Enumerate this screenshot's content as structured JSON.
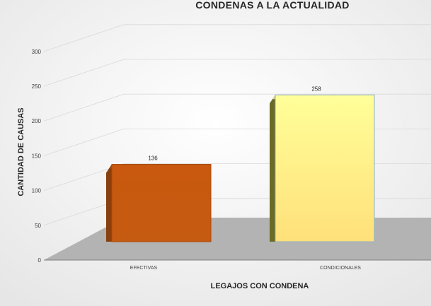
{
  "chart_data": {
    "type": "bar",
    "title": "CONDENAS A LA ACTUALIDAD",
    "xlabel": "LEGAJOS CON CONDENA",
    "ylabel": "CANTIDAD DE CAUSAS",
    "categories": [
      "EFECTIVAS",
      "CONDICIONALES"
    ],
    "values": [
      136,
      258
    ],
    "data_labels": [
      "136",
      "258"
    ],
    "ylim": [
      0,
      300
    ],
    "yticks": [
      0,
      50,
      100,
      150,
      200,
      250,
      300
    ],
    "colors": [
      "#c55a11",
      "#ffff99"
    ],
    "grid": true,
    "style": "3d"
  }
}
